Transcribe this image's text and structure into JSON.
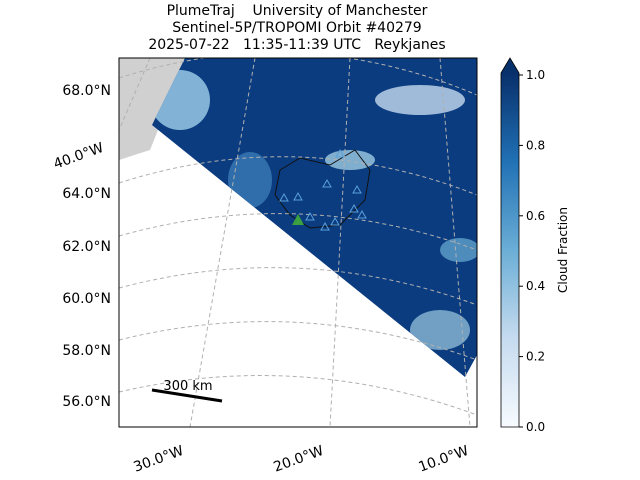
{
  "title": {
    "line1": "PlumeTraj    University of Manchester",
    "line2": "Sentinel-5P/TROPOMI Orbit #40279",
    "line3": "2025-07-22   11:35-11:39 UTC   Reykjanes"
  },
  "map": {
    "lat_labels": [
      "68.0°N",
      "64.0°N",
      "62.0°N",
      "60.0°N",
      "58.0°N",
      "56.0°N"
    ],
    "lon_labels": [
      "40.0°W",
      "30.0°W",
      "20.0°W",
      "10.0°W"
    ],
    "scale_bar": "300 km"
  },
  "colorbar": {
    "label": "Cloud Fraction",
    "lim": [
      0,
      1
    ],
    "ticks": [
      {
        "value": 0,
        "label": "0.0"
      },
      0.2,
      0.4,
      0.6,
      0.8,
      {
        "value": 1,
        "label": "1.0"
      }
    ]
  }
}
